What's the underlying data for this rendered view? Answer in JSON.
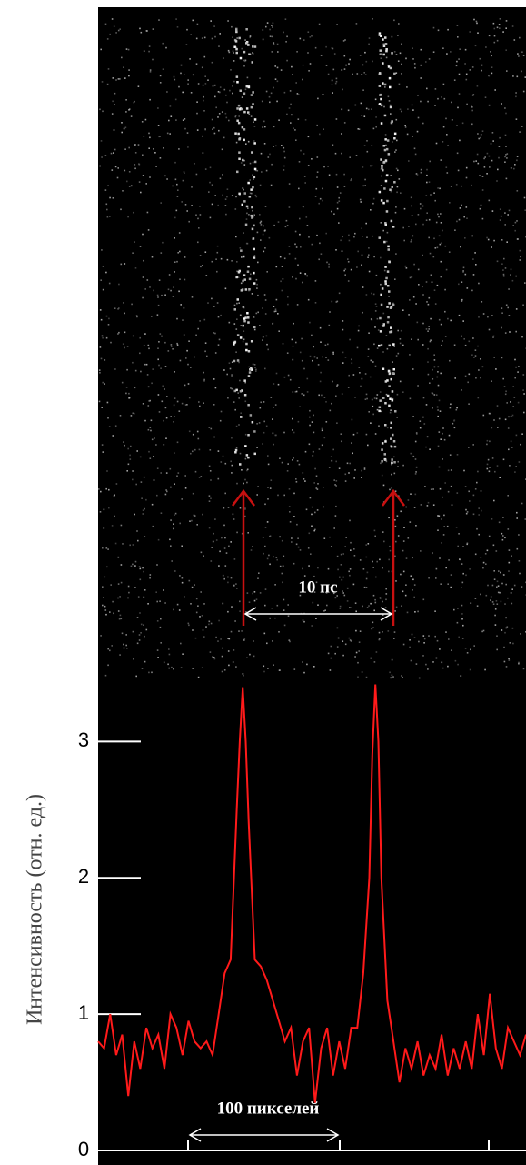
{
  "chart_data": {
    "type": "line",
    "ylabel": "Интенсивность (отн. ед.)",
    "annotations": [
      "10 пс",
      "100 пикселей"
    ],
    "x": [
      0,
      4,
      8,
      12,
      16,
      20,
      24,
      28,
      32,
      36,
      40,
      44,
      48,
      52,
      56,
      60,
      64,
      68,
      72,
      76,
      80,
      84,
      88,
      92,
      94,
      96,
      98,
      100,
      104,
      108,
      112,
      116,
      120,
      124,
      128,
      132,
      136,
      140,
      144,
      148,
      152,
      156,
      160,
      164,
      168,
      172,
      176,
      180,
      182,
      184,
      186,
      188,
      192,
      196,
      200,
      204,
      208,
      212,
      216,
      220,
      224,
      228,
      232,
      236,
      240,
      244,
      248,
      252,
      256,
      260,
      264,
      268,
      272,
      276,
      280,
      284
    ],
    "series": [
      {
        "color": "#ff1a1a",
        "values": [
          0.8,
          0.75,
          1.0,
          0.7,
          0.85,
          0.4,
          0.8,
          0.6,
          0.9,
          0.75,
          0.85,
          0.6,
          1.0,
          0.9,
          0.7,
          0.95,
          0.8,
          0.75,
          0.8,
          0.7,
          1.0,
          1.3,
          1.4,
          2.5,
          3.0,
          3.4,
          3.0,
          2.4,
          1.4,
          1.35,
          1.25,
          1.1,
          0.95,
          0.8,
          0.9,
          0.55,
          0.8,
          0.9,
          0.35,
          0.75,
          0.9,
          0.55,
          0.8,
          0.6,
          0.9,
          0.9,
          1.3,
          2.0,
          2.9,
          3.42,
          3.0,
          2.0,
          1.1,
          0.8,
          0.5,
          0.75,
          0.6,
          0.8,
          0.55,
          0.7,
          0.6,
          0.85,
          0.55,
          0.75,
          0.6,
          0.8,
          0.6,
          1.0,
          0.7,
          1.15,
          0.75,
          0.6,
          0.9,
          0.8,
          0.7,
          0.85
        ]
      }
    ],
    "xlim": [
      0,
      284
    ],
    "ylim": [
      0,
      3.47
    ],
    "yticks": [
      0,
      1,
      2,
      3
    ]
  }
}
